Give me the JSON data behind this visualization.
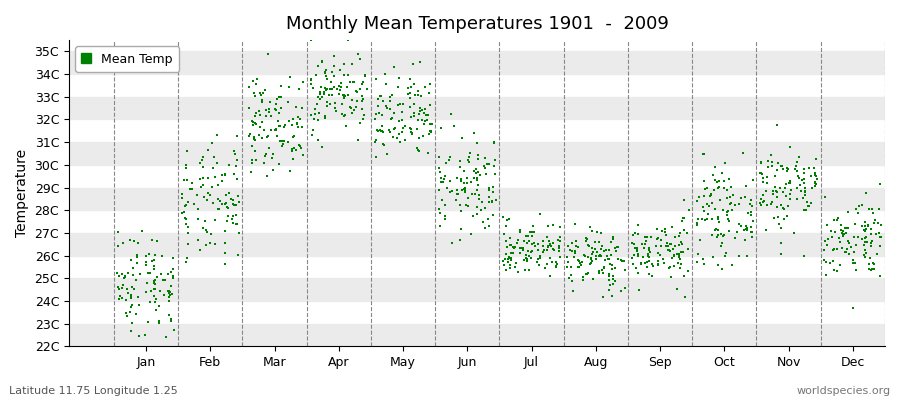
{
  "title": "Monthly Mean Temperatures 1901  -  2009",
  "ylabel": "Temperature",
  "xlabel_months": [
    "Jan",
    "Feb",
    "Mar",
    "Apr",
    "May",
    "Jun",
    "Jul",
    "Aug",
    "Sep",
    "Oct",
    "Nov",
    "Dec"
  ],
  "subtitle_left": "Latitude 11.75 Longitude 1.25",
  "subtitle_right": "worldspecies.org",
  "legend_label": "Mean Temp",
  "dot_color": "#008000",
  "background_color": "#ffffff",
  "band_color": "#ebebeb",
  "ytick_labels": [
    "22C",
    "23C",
    "24C",
    "25C",
    "26C",
    "27C",
    "28C",
    "29C",
    "30C",
    "31C",
    "32C",
    "33C",
    "34C",
    "35C"
  ],
  "ytick_values": [
    22,
    23,
    24,
    25,
    26,
    27,
    28,
    29,
    30,
    31,
    32,
    33,
    34,
    35
  ],
  "ylim": [
    22,
    35.5
  ],
  "monthly_mean": [
    24.8,
    28.2,
    31.8,
    33.2,
    32.0,
    29.0,
    26.3,
    25.8,
    26.2,
    27.8,
    29.0,
    26.8
  ],
  "monthly_std": [
    1.2,
    1.3,
    1.0,
    0.9,
    1.0,
    1.1,
    0.6,
    0.7,
    0.7,
    1.0,
    1.0,
    0.9
  ],
  "n_years": 109,
  "xlim_left": -0.7,
  "xlim_right": 12.0,
  "month_tick_positions": [
    0.5,
    1.5,
    2.5,
    3.5,
    4.5,
    5.5,
    6.5,
    7.5,
    8.5,
    9.5,
    10.5,
    11.5
  ],
  "vline_positions": [
    0,
    1,
    2,
    3,
    4,
    5,
    6,
    7,
    8,
    9,
    10,
    11,
    12
  ]
}
